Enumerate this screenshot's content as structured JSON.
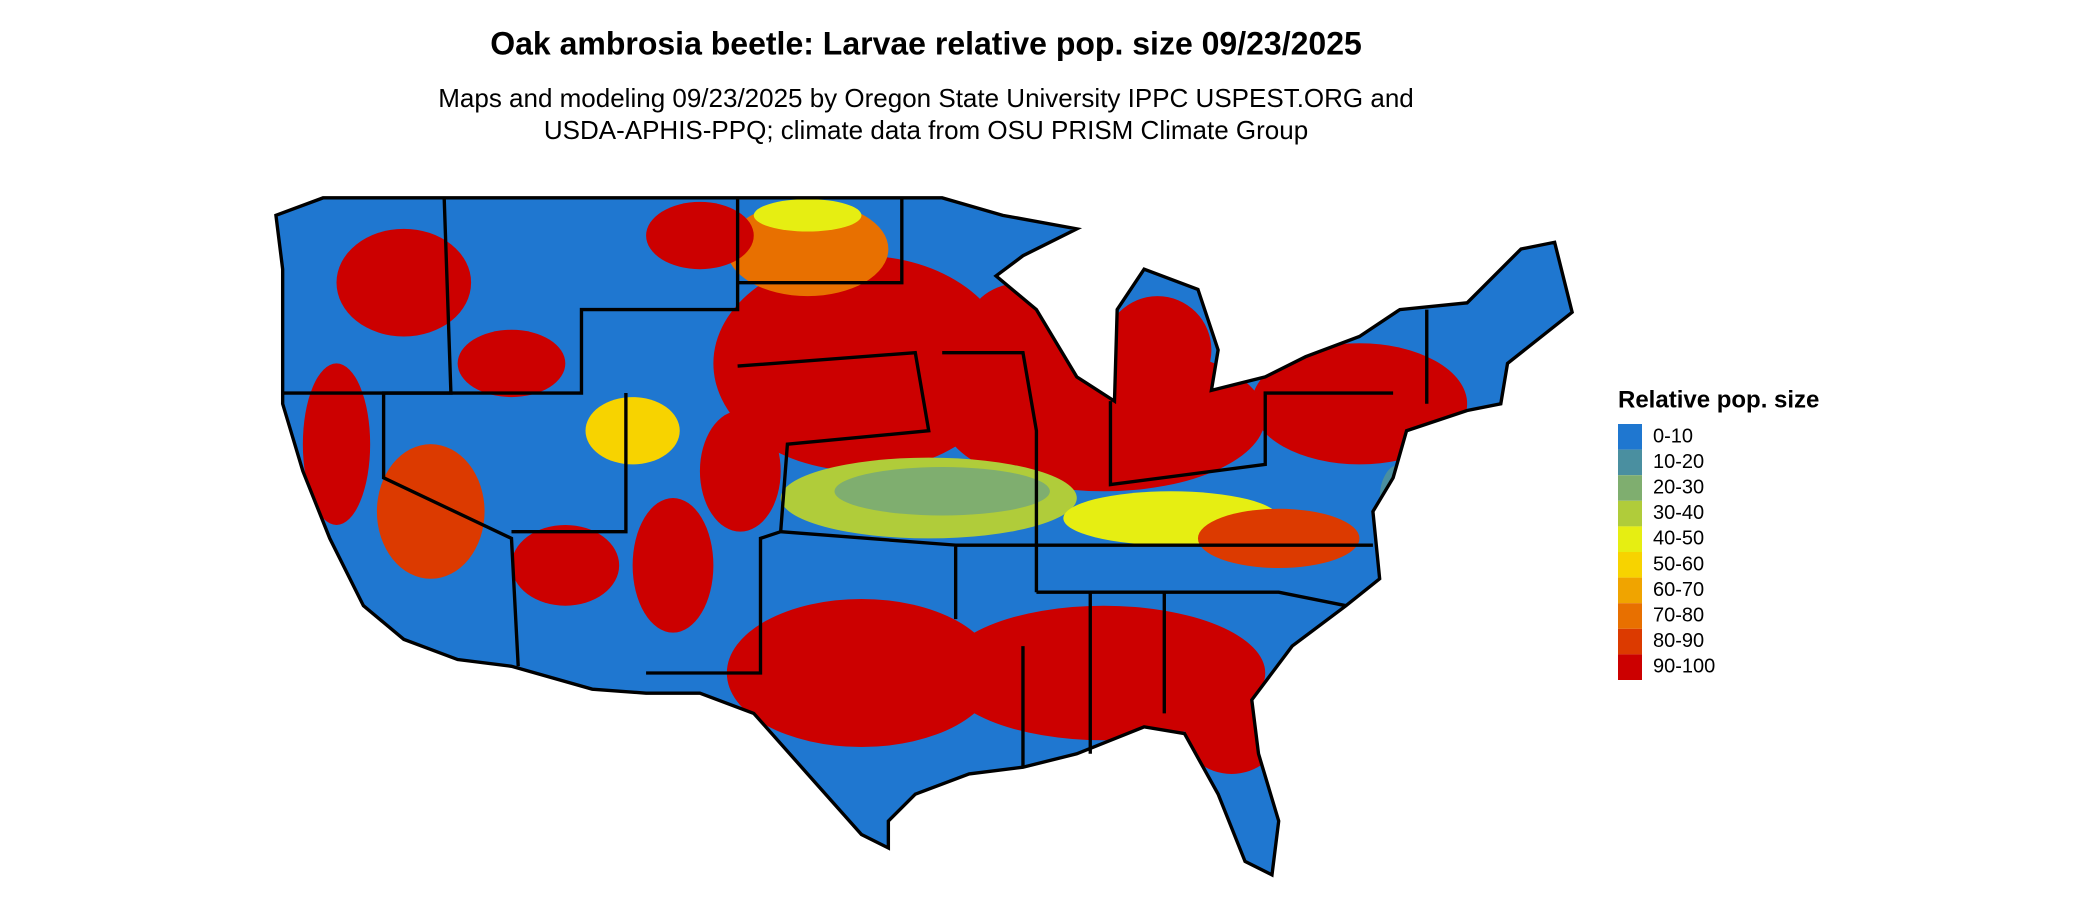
{
  "title": "Oak ambrosia beetle: Larvae relative pop. size 09/23/2025",
  "subtitle": [
    "Maps and modeling 09/23/2025 by Oregon State University IPPC USPEST.ORG and",
    "USDA-APHIS-PPQ; climate data from OSU PRISM Climate Group"
  ],
  "legend": {
    "title": "Relative pop. size",
    "items": [
      {
        "label": "0-10",
        "color": "#1f77d0"
      },
      {
        "label": "10-20",
        "color": "#4a8fa0"
      },
      {
        "label": "20-30",
        "color": "#7fae6f"
      },
      {
        "label": "30-40",
        "color": "#b0cc3a"
      },
      {
        "label": "40-50",
        "color": "#e6ee12"
      },
      {
        "label": "50-60",
        "color": "#f7d300"
      },
      {
        "label": "60-70",
        "color": "#f0a400"
      },
      {
        "label": "70-80",
        "color": "#e87000"
      },
      {
        "label": "80-90",
        "color": "#dc3a00"
      },
      {
        "label": "90-100",
        "color": "#cc0000"
      }
    ]
  }
}
